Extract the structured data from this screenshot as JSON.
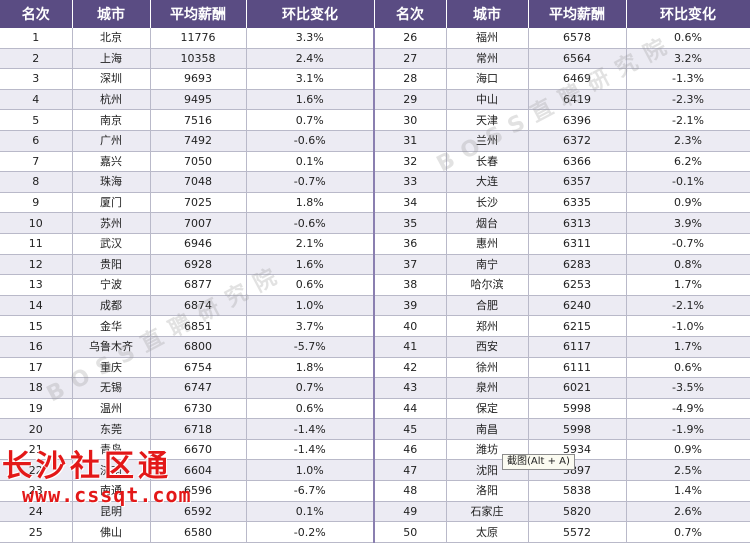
{
  "chart_data": {
    "type": "table",
    "columns": [
      "名次",
      "城市",
      "平均薪酬",
      "环比变化",
      "名次",
      "城市",
      "平均薪酬",
      "环比变化"
    ],
    "rows": [
      [
        "1",
        "北京",
        "11776",
        "3.3%",
        "26",
        "福州",
        "6578",
        "0.6%"
      ],
      [
        "2",
        "上海",
        "10358",
        "2.4%",
        "27",
        "常州",
        "6564",
        "3.2%"
      ],
      [
        "3",
        "深圳",
        "9693",
        "3.1%",
        "28",
        "海口",
        "6469",
        "-1.3%"
      ],
      [
        "4",
        "杭州",
        "9495",
        "1.6%",
        "29",
        "中山",
        "6419",
        "-2.3%"
      ],
      [
        "5",
        "南京",
        "7516",
        "0.7%",
        "30",
        "天津",
        "6396",
        "-2.1%"
      ],
      [
        "6",
        "广州",
        "7492",
        "-0.6%",
        "31",
        "兰州",
        "6372",
        "2.3%"
      ],
      [
        "7",
        "嘉兴",
        "7050",
        "0.1%",
        "32",
        "长春",
        "6366",
        "6.2%"
      ],
      [
        "8",
        "珠海",
        "7048",
        "-0.7%",
        "33",
        "大连",
        "6357",
        "-0.1%"
      ],
      [
        "9",
        "厦门",
        "7025",
        "1.8%",
        "34",
        "长沙",
        "6335",
        "0.9%"
      ],
      [
        "10",
        "苏州",
        "7007",
        "-0.6%",
        "35",
        "烟台",
        "6313",
        "3.9%"
      ],
      [
        "11",
        "武汉",
        "6946",
        "2.1%",
        "36",
        "惠州",
        "6311",
        "-0.7%"
      ],
      [
        "12",
        "贵阳",
        "6928",
        "1.6%",
        "37",
        "南宁",
        "6283",
        "0.8%"
      ],
      [
        "13",
        "宁波",
        "6877",
        "0.6%",
        "38",
        "哈尔滨",
        "6253",
        "1.7%"
      ],
      [
        "14",
        "成都",
        "6874",
        "1.0%",
        "39",
        "合肥",
        "6240",
        "-2.1%"
      ],
      [
        "15",
        "金华",
        "6851",
        "3.7%",
        "40",
        "郑州",
        "6215",
        "-1.0%"
      ],
      [
        "16",
        "乌鲁木齐",
        "6800",
        "-5.7%",
        "41",
        "西安",
        "6117",
        "1.7%"
      ],
      [
        "17",
        "重庆",
        "6754",
        "1.8%",
        "42",
        "徐州",
        "6111",
        "0.6%"
      ],
      [
        "18",
        "无锡",
        "6747",
        "0.7%",
        "43",
        "泉州",
        "6021",
        "-3.5%"
      ],
      [
        "19",
        "温州",
        "6730",
        "0.6%",
        "44",
        "保定",
        "5998",
        "-4.9%"
      ],
      [
        "20",
        "东莞",
        "6718",
        "-1.4%",
        "45",
        "南昌",
        "5998",
        "-1.9%"
      ],
      [
        "21",
        "青岛",
        "6670",
        "-1.4%",
        "46",
        "潍坊",
        "5934",
        "0.9%"
      ],
      [
        "22",
        "济南",
        "6604",
        "1.0%",
        "47",
        "沈阳",
        "5897",
        "2.5%"
      ],
      [
        "23",
        "南通",
        "6596",
        "-6.7%",
        "48",
        "洛阳",
        "5838",
        "1.4%"
      ],
      [
        "24",
        "昆明",
        "6592",
        "0.1%",
        "49",
        "石家庄",
        "5820",
        "2.6%"
      ],
      [
        "25",
        "佛山",
        "6580",
        "-0.2%",
        "50",
        "太原",
        "5572",
        "0.7%"
      ]
    ]
  },
  "watermark": {
    "text": "BOSS直聘研究院",
    "color": "#969696"
  },
  "site_logo": {
    "line1": "长沙社区通",
    "line2": "www.cssqt.com",
    "color": "#e31818"
  },
  "tooltip": {
    "text": "截图(Alt + A)"
  },
  "colors": {
    "header_bg": "#5a4c83",
    "stripe_bg": "#ecebf3"
  }
}
